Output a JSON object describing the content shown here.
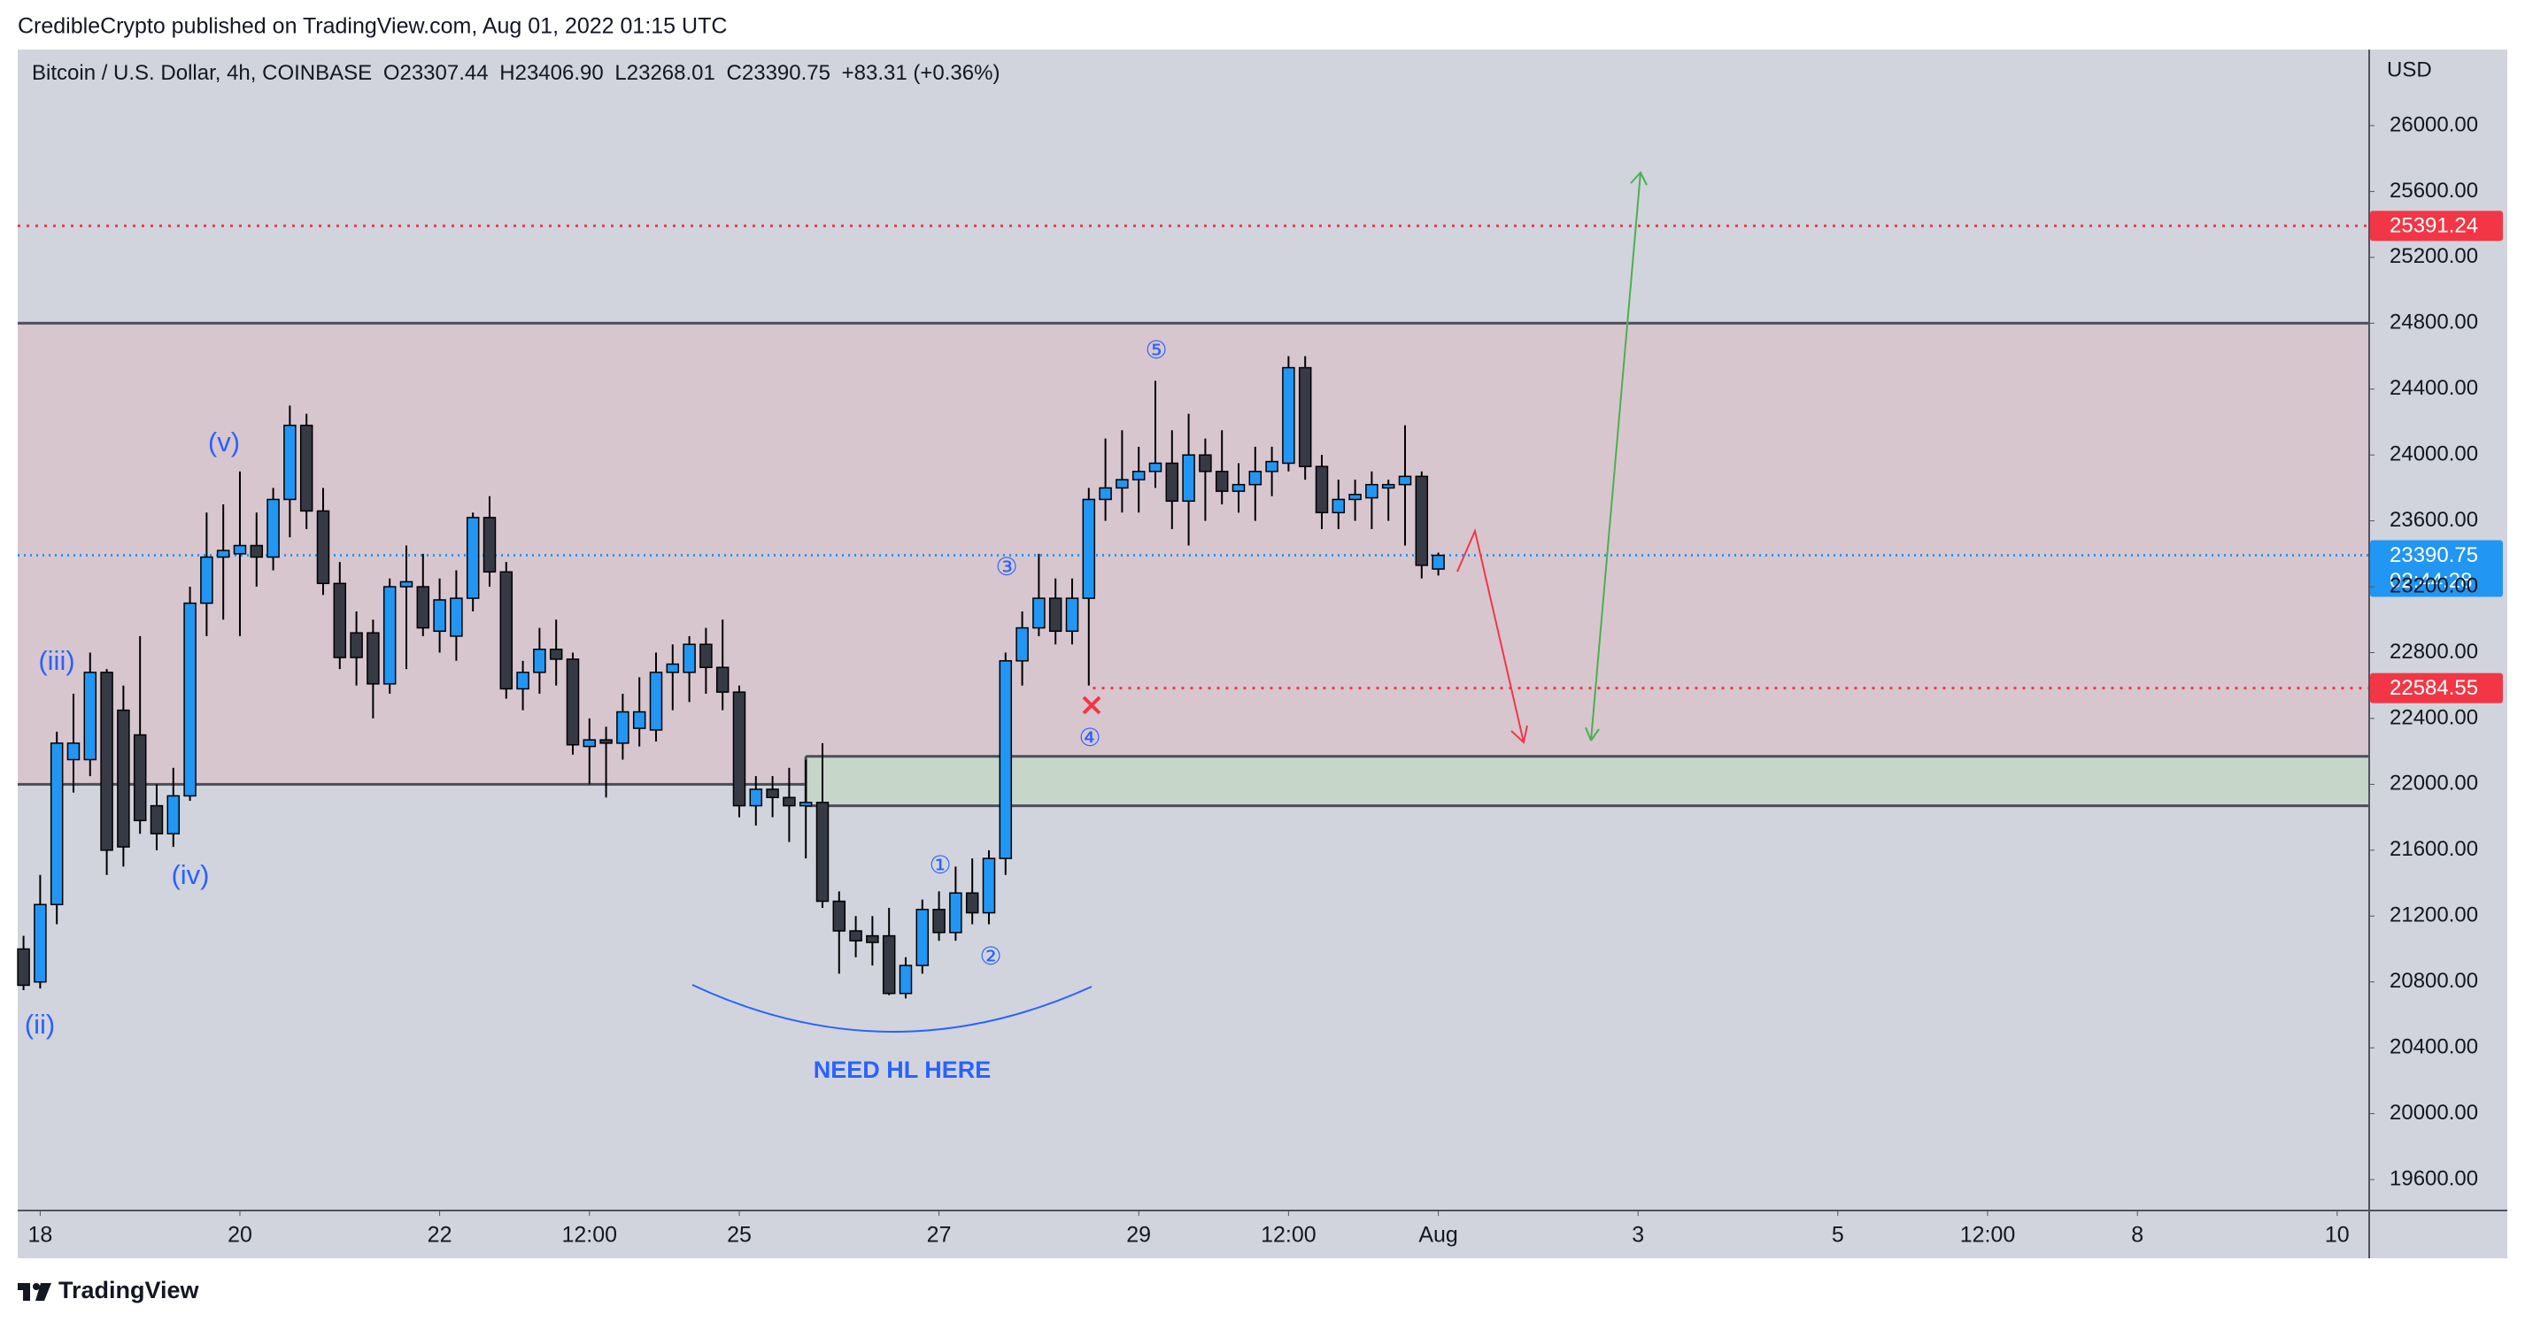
{
  "chart_data": {
    "type": "candlestick",
    "header": "CredibleCrypto published on TradingView.com, Aug 01, 2022 01:15 UTC",
    "legend": {
      "symbol": "Bitcoin / U.S. Dollar, 4h, COINBASE",
      "items": [
        {
          "label": "O",
          "value": "23307.44"
        },
        {
          "label": "H",
          "value": "23406.90"
        },
        {
          "label": "L",
          "value": "23268.01"
        },
        {
          "label": "C",
          "value": "23390.75"
        }
      ],
      "change": "+83.31 (+0.36%)"
    },
    "currency": "USD",
    "brand": "TradingView",
    "up_color": "#2196f3",
    "down_color": "#363a45",
    "x": [
      -4,
      0,
      4,
      8,
      12,
      16,
      20,
      24,
      28,
      32,
      36,
      40,
      44,
      48,
      52,
      56,
      60,
      64,
      68,
      72,
      76,
      80,
      84,
      88,
      92,
      96,
      100,
      104,
      108,
      112,
      116,
      120,
      124,
      128,
      132,
      136,
      140,
      144,
      148,
      152,
      156,
      160,
      164,
      168,
      172,
      176,
      180,
      184,
      188,
      192,
      196,
      200,
      204,
      208,
      212,
      216,
      220,
      224,
      228,
      232,
      236,
      240,
      244,
      248,
      252,
      256,
      260,
      264,
      268,
      272,
      276,
      280,
      284,
      288,
      292,
      296,
      300,
      304,
      308,
      312,
      316,
      320,
      324,
      328,
      332,
      336
    ],
    "open": [
      21000,
      20800,
      21270,
      22150,
      22150,
      22680,
      22450,
      22300,
      21870,
      21700,
      21930,
      23100,
      23380,
      23400,
      23450,
      23380,
      23730,
      24180,
      23660,
      23220,
      22920,
      22920,
      22610,
      23200,
      23200,
      22930,
      22900,
      23130,
      23620,
      23290,
      22580,
      22680,
      22820,
      22760,
      22230,
      22270,
      22250,
      22340,
      22330,
      22680,
      22680,
      22850,
      22710,
      22560,
      21870,
      21970,
      21920,
      21870,
      21890,
      21290,
      21110,
      21080,
      21080,
      20730,
      20900,
      21240,
      21100,
      21340,
      21220,
      21550,
      22750,
      22950,
      23130,
      22930,
      23130,
      23730,
      23800,
      23850,
      23900,
      23950,
      23720,
      24000,
      23900,
      23780,
      23820,
      23900,
      23950,
      24530,
      23930,
      23650,
      23730,
      23740,
      23800,
      23820,
      23870,
      23307.44
    ],
    "high": [
      21080,
      21450,
      22320,
      22550,
      22800,
      22700,
      22600,
      22900,
      22000,
      22100,
      23200,
      23650,
      23700,
      23900,
      23650,
      23800,
      24300,
      24250,
      23800,
      23350,
      23050,
      23000,
      23250,
      23450,
      23400,
      23250,
      23300,
      23650,
      23750,
      23350,
      22750,
      22950,
      23000,
      22800,
      22400,
      22350,
      22550,
      22650,
      22800,
      22850,
      22900,
      22950,
      23000,
      22600,
      22050,
      22050,
      22100,
      22150,
      22250,
      21350,
      21200,
      21200,
      21250,
      20950,
      21300,
      21350,
      21500,
      21550,
      21600,
      22800,
      23050,
      23400,
      23250,
      23250,
      23800,
      24100,
      24150,
      24050,
      24450,
      24150,
      24250,
      24100,
      24150,
      23950,
      24050,
      24050,
      24600,
      24600,
      24000,
      23850,
      23850,
      23900,
      23850,
      24180,
      23900,
      23406.9
    ],
    "low": [
      20750,
      20760,
      21150,
      21950,
      22050,
      21450,
      21500,
      21700,
      21600,
      21620,
      21900,
      22900,
      23000,
      22900,
      23200,
      23300,
      23500,
      23550,
      23150,
      22700,
      22600,
      22400,
      22550,
      22700,
      22900,
      22800,
      22750,
      23050,
      23200,
      22520,
      22450,
      22550,
      22600,
      22180,
      22000,
      21920,
      22150,
      22230,
      22260,
      22450,
      22500,
      22550,
      22450,
      21800,
      21750,
      21800,
      21650,
      21550,
      21250,
      20850,
      20950,
      20900,
      20720,
      20700,
      20850,
      21050,
      21050,
      21150,
      21150,
      21450,
      22600,
      22900,
      22850,
      22850,
      22600,
      23600,
      23650,
      23650,
      23800,
      23550,
      23450,
      23600,
      23700,
      23650,
      23600,
      23750,
      23900,
      23850,
      23550,
      23550,
      23600,
      23550,
      23600,
      23450,
      23250,
      23268.01
    ],
    "close": [
      20780,
      21270,
      22250,
      22250,
      22680,
      21600,
      21620,
      21780,
      21700,
      21930,
      23100,
      23380,
      23420,
      23450,
      23380,
      23730,
      24180,
      23660,
      23220,
      22770,
      22770,
      22610,
      23200,
      23230,
      22950,
      23120,
      23130,
      23620,
      23290,
      22580,
      22680,
      22820,
      22760,
      22240,
      22270,
      22250,
      22440,
      22440,
      22680,
      22730,
      22850,
      22710,
      22560,
      21870,
      21970,
      21920,
      21870,
      21890,
      21290,
      21110,
      21050,
      21040,
      20730,
      20900,
      21240,
      21100,
      21340,
      21220,
      21550,
      22750,
      22950,
      23130,
      22930,
      23130,
      23730,
      23800,
      23850,
      23900,
      23950,
      23720,
      24000,
      23900,
      23780,
      23820,
      23900,
      23960,
      24530,
      23930,
      23650,
      23730,
      23760,
      23820,
      23820,
      23870,
      23330,
      23390.75
    ],
    "xlim": [
      -5.4,
      559.7
    ],
    "xticks": [
      {
        "value": 0,
        "label": "18"
      },
      {
        "value": 48,
        "label": "20"
      },
      {
        "value": 96,
        "label": "22"
      },
      {
        "value": 132,
        "label": "12:00"
      },
      {
        "value": 168,
        "label": "25"
      },
      {
        "value": 216,
        "label": "27"
      },
      {
        "value": 264,
        "label": "29"
      },
      {
        "value": 300,
        "label": "12:00"
      },
      {
        "value": 336,
        "label": "Aug"
      },
      {
        "value": 384,
        "label": "3"
      },
      {
        "value": 432,
        "label": "5"
      },
      {
        "value": 468,
        "label": "12:00"
      },
      {
        "value": 504,
        "label": "8"
      },
      {
        "value": 552,
        "label": "10"
      }
    ],
    "ylim": [
      19412,
      26462
    ],
    "yticks": [
      {
        "value": 19600,
        "label": "19600.00"
      },
      {
        "value": 20000,
        "label": "20000.00"
      },
      {
        "value": 20400,
        "label": "20400.00"
      },
      {
        "value": 20800,
        "label": "20800.00"
      },
      {
        "value": 21200,
        "label": "21200.00"
      },
      {
        "value": 21600,
        "label": "21600.00"
      },
      {
        "value": 22000,
        "label": "22000.00"
      },
      {
        "value": 22400,
        "label": "22400.00"
      },
      {
        "value": 22800,
        "label": "22800.00"
      },
      {
        "value": 23200,
        "label": "23200.00"
      },
      {
        "value": 23600,
        "label": "23600.00"
      },
      {
        "value": 24000,
        "label": "24000.00"
      },
      {
        "value": 24400,
        "label": "24400.00"
      },
      {
        "value": 24800,
        "label": "24800.00"
      },
      {
        "value": 25200,
        "label": "25200.00"
      },
      {
        "value": 25600,
        "label": "25600.00"
      },
      {
        "value": 26000,
        "label": "26000.00"
      }
    ],
    "grid": false,
    "zones": [
      {
        "from": 22000,
        "to": 24800,
        "color": "#d8c6cf"
      },
      {
        "from": 21870,
        "to": 22170,
        "start": 184,
        "color": "#c6d6c9"
      }
    ],
    "price_lines": [
      {
        "value": 25391.24,
        "color": "#f23645"
      },
      {
        "value": 23390.75,
        "color": "#2196f3",
        "countdown": "02:44:28"
      },
      {
        "value": 22584.55,
        "color": "#f23645",
        "start": 253
      }
    ],
    "annotations": [
      "(ii)",
      "(iii)",
      "(iv)",
      "(v)",
      "①",
      "②",
      "③",
      "④",
      "⑤",
      "NEED HL HERE"
    ]
  }
}
